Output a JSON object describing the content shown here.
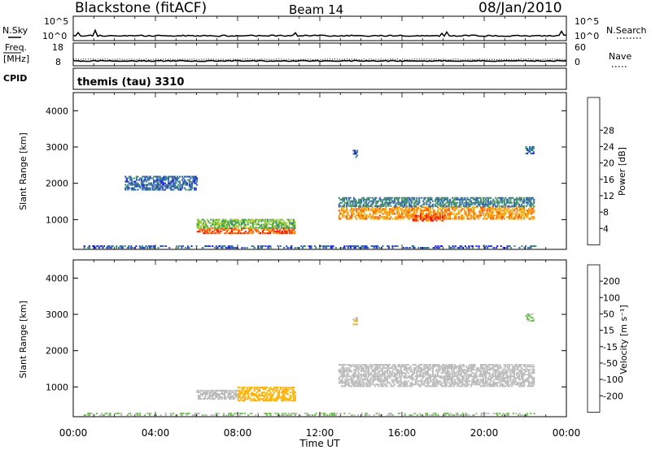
{
  "header": {
    "station": "Blackstone (fitACF)",
    "beam": "Beam 14",
    "date": "08/Jan/2010"
  },
  "nsky_panel": {
    "left_label": "N.Sky",
    "right_label": "N.Search",
    "left_ticks": [
      "10^5",
      "10^0"
    ],
    "right_ticks": [
      "10^5",
      "10^0"
    ]
  },
  "freq_panel": {
    "left_label_top": "Freq.",
    "left_label_bottom": "[MHz]",
    "right_label": "Nave",
    "left_ticks": [
      "18",
      "8"
    ],
    "right_ticks": [
      "60",
      "0"
    ]
  },
  "cpid_panel": {
    "label": "CPID",
    "value": "themis (tau) 3310"
  },
  "time_axis": {
    "title": "Time UT",
    "ticks": [
      "00:00",
      "04:00",
      "08:00",
      "12:00",
      "16:00",
      "20:00",
      "00:00"
    ]
  },
  "colors": {
    "power_scale": [
      "#1f1fe6",
      "#2d63b3",
      "#3d8a78",
      "#46a04a",
      "#9ccc38",
      "#f0b400",
      "#ff8c00",
      "#ff4500",
      "#ee0000"
    ],
    "velocity_scale": [
      "#1f1fe6",
      "#2d63b3",
      "#3d8a78",
      "#6cc44a",
      "#bbbbbb",
      "#ffb400",
      "#ff8c00",
      "#ff5a00",
      "#ee0000"
    ]
  },
  "chart_data": [
    {
      "type": "heatmap",
      "name": "power",
      "x_unit": "hours UT",
      "xlim": [
        0,
        24
      ],
      "ylabel": "Slant Range [km]",
      "ylim": [
        180,
        4500
      ],
      "yticks": [
        "1000",
        "2000",
        "3000",
        "4000"
      ],
      "colorbar": {
        "title": "Power [dB]",
        "ticks": [
          "4",
          "8",
          "12",
          "16",
          "20",
          "24",
          "28"
        ],
        "range": [
          0,
          32
        ]
      },
      "regions": [
        {
          "t": [
            6.0,
            10.8
          ],
          "r": [
            600,
            750
          ],
          "value": 26
        },
        {
          "t": [
            6.0,
            10.8
          ],
          "r": [
            750,
            1000
          ],
          "value": 14
        },
        {
          "t": [
            12.9,
            22.4
          ],
          "r": [
            1000,
            1350
          ],
          "value": 22
        },
        {
          "t": [
            12.9,
            22.4
          ],
          "r": [
            1350,
            1600
          ],
          "value": 8
        },
        {
          "t": [
            16.5,
            18.0
          ],
          "r": [
            950,
            1100
          ],
          "value": 27
        },
        {
          "t": [
            13.6,
            13.8
          ],
          "r": [
            2700,
            2900
          ],
          "value": 6
        },
        {
          "t": [
            22.0,
            22.4
          ],
          "r": [
            2800,
            3000
          ],
          "value": 6
        },
        {
          "t": [
            2.5,
            6.0
          ],
          "r": [
            1800,
            2200
          ],
          "value": 6
        },
        {
          "t": [
            0.5,
            22.5
          ],
          "r": [
            200,
            250
          ],
          "value": 5
        }
      ]
    },
    {
      "type": "heatmap",
      "name": "velocity",
      "x_unit": "hours UT",
      "xlim": [
        0,
        24
      ],
      "ylabel": "Slant Range [km]",
      "ylim": [
        180,
        4500
      ],
      "yticks": [
        "1000",
        "2000",
        "3000",
        "4000"
      ],
      "colorbar": {
        "title": "Velocity [m s⁻¹]",
        "ticks": [
          "200",
          "100",
          "50",
          "15",
          "-15",
          "-50",
          "-100",
          "-200"
        ],
        "range": [
          -250,
          250
        ]
      },
      "regions": [
        {
          "t": [
            6.0,
            8.0
          ],
          "r": [
            650,
            900
          ],
          "value": 0
        },
        {
          "t": [
            8.0,
            10.8
          ],
          "r": [
            600,
            1000
          ],
          "value": -60
        },
        {
          "t": [
            12.9,
            22.4
          ],
          "r": [
            1000,
            1600
          ],
          "value": 0
        },
        {
          "t": [
            22.0,
            22.4
          ],
          "r": [
            2800,
            3000
          ],
          "value": 30
        },
        {
          "t": [
            13.6,
            13.8
          ],
          "r": [
            2700,
            2900
          ],
          "value": -30
        },
        {
          "t": [
            0.5,
            22.5
          ],
          "r": [
            200,
            250
          ],
          "value": 30
        }
      ]
    }
  ]
}
